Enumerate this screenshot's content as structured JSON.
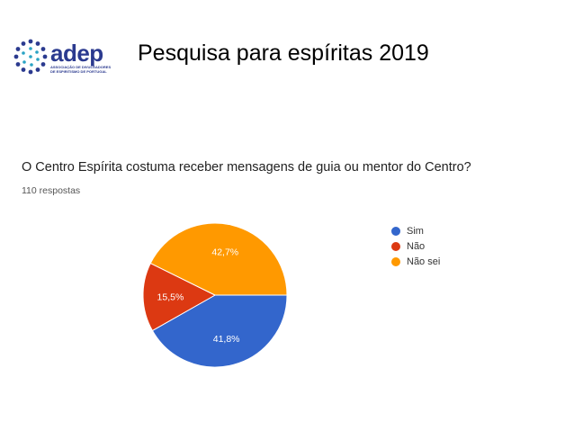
{
  "header": {
    "logo_text": "adep",
    "logo_subtext": "Associação de Divulgadores de Espiritismo de Portugal",
    "title": "Pesquisa para espíritas  2019"
  },
  "form": {
    "question": "O Centro Espírita costuma receber mensagens de guia ou mentor do Centro?",
    "responses": "110 respostas"
  },
  "chart_data": {
    "type": "pie",
    "title": "O Centro Espírita costuma receber mensagens de guia ou mentor do Centro?",
    "categories": [
      "Sim",
      "Não",
      "Não sei"
    ],
    "values": [
      41.8,
      15.5,
      42.7
    ],
    "labels": [
      "41,8%",
      "15,5%",
      "42,7%"
    ],
    "colors": [
      "#3366cc",
      "#dc3912",
      "#ff9900"
    ],
    "legend_position": "right"
  },
  "colors": {
    "brand": "#2b3a8f",
    "brand_accent": "#2aa3c4"
  }
}
